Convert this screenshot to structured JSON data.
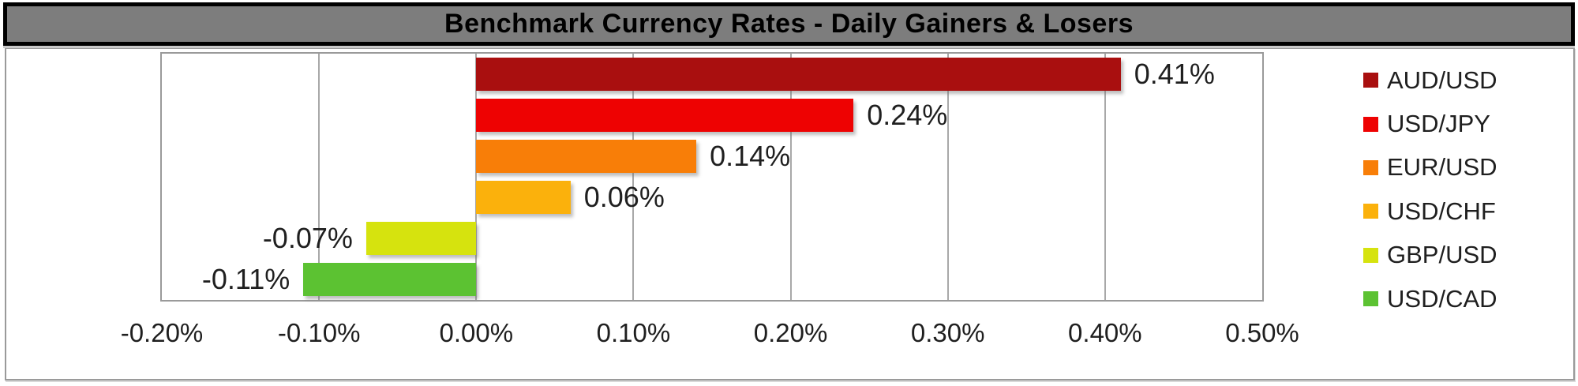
{
  "title": "Benchmark Currency Rates - Daily Gainers & Losers",
  "colors": {
    "title_bar_bg": "#7D7D7D",
    "title_bar_border": "#000000",
    "title_text": "#000000",
    "panel_border": "#9A9A9A",
    "gridline": "#A8A8A8",
    "label_text": "#1F1F1F",
    "background": "#FFFFFF"
  },
  "chart_data": {
    "type": "bar",
    "orientation": "horizontal",
    "title": "Benchmark Currency Rates - Daily Gainers & Losers",
    "xlabel": "",
    "ylabel": "",
    "units": "percent",
    "xlim": [
      -0.2,
      0.5
    ],
    "grid": true,
    "legend_position": "right",
    "series": [
      {
        "name": "AUD/USD",
        "value": 0.41,
        "label": "0.41%",
        "color": "#A90F0F"
      },
      {
        "name": "USD/JPY",
        "value": 0.24,
        "label": "0.24%",
        "color": "#EE0202"
      },
      {
        "name": "EUR/USD",
        "value": 0.14,
        "label": "0.14%",
        "color": "#F87E08"
      },
      {
        "name": "USD/CHF",
        "value": 0.06,
        "label": "0.06%",
        "color": "#FBB10C"
      },
      {
        "name": "GBP/USD",
        "value": -0.07,
        "label": "-0.07%",
        "color": "#D6E30E"
      },
      {
        "name": "USD/CAD",
        "value": -0.11,
        "label": "-0.11%",
        "color": "#5CC232"
      }
    ],
    "x_ticks": [
      {
        "value": -0.2,
        "label": "-0.20%"
      },
      {
        "value": -0.1,
        "label": "-0.10%"
      },
      {
        "value": 0.0,
        "label": "0.00%"
      },
      {
        "value": 0.1,
        "label": "0.10%"
      },
      {
        "value": 0.2,
        "label": "0.20%"
      },
      {
        "value": 0.3,
        "label": "0.30%"
      },
      {
        "value": 0.4,
        "label": "0.40%"
      },
      {
        "value": 0.5,
        "label": "0.50%"
      }
    ]
  }
}
